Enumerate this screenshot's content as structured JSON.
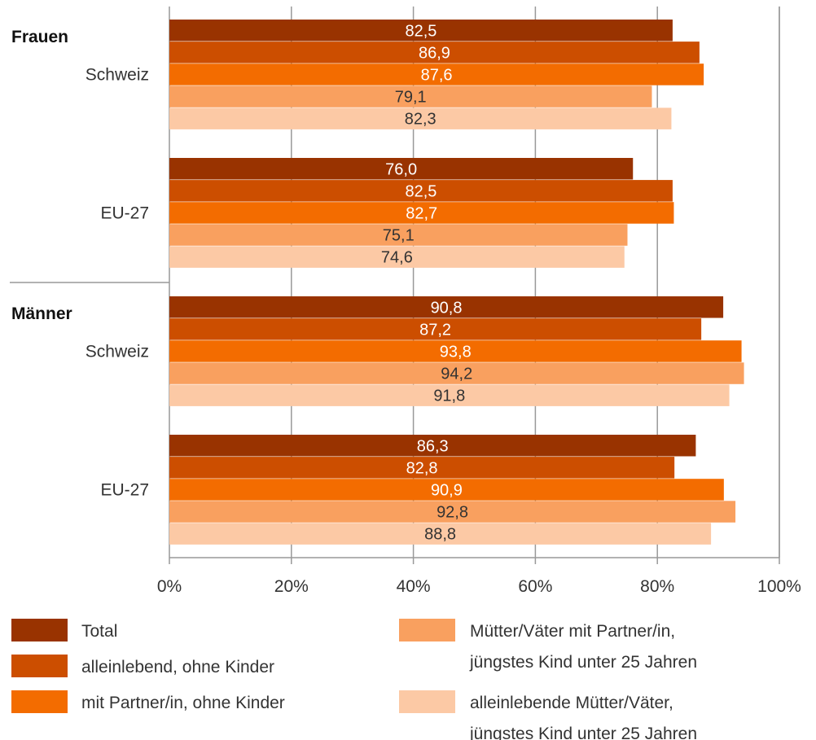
{
  "chart_data": {
    "type": "bar",
    "orientation": "horizontal",
    "title": "",
    "xlabel": "",
    "ylabel": "",
    "xlim": [
      0,
      100
    ],
    "x_ticks": [
      "0%",
      "20%",
      "40%",
      "60%",
      "80%",
      "100%"
    ],
    "grid": true,
    "legend_position": "bottom",
    "groups": [
      {
        "label": "Frauen",
        "subgroups": [
          {
            "label": "Schweiz",
            "values": [
              82.5,
              86.9,
              87.6,
              79.1,
              82.3
            ],
            "value_labels": [
              "82,5",
              "86,9",
              "87,6",
              "79,1",
              "82,3"
            ]
          },
          {
            "label": "EU-27",
            "values": [
              76.0,
              82.5,
              82.7,
              75.1,
              74.6
            ],
            "value_labels": [
              "76,0",
              "82,5",
              "82,7",
              "75,1",
              "74,6"
            ]
          }
        ]
      },
      {
        "label": "Männer",
        "subgroups": [
          {
            "label": "Schweiz",
            "values": [
              90.8,
              87.2,
              93.8,
              94.2,
              91.8
            ],
            "value_labels": [
              "90,8",
              "87,2",
              "93,8",
              "94,2",
              "91,8"
            ]
          },
          {
            "label": "EU-27",
            "values": [
              86.3,
              82.8,
              90.9,
              92.8,
              88.8
            ],
            "value_labels": [
              "86,3",
              "82,8",
              "90,9",
              "92,8",
              "88,8"
            ]
          }
        ]
      }
    ],
    "series": [
      {
        "name": "Total",
        "color": "#993300",
        "label_color": "#ffffff",
        "legend_lines": [
          "Total"
        ]
      },
      {
        "name": "alleinlebend, ohne Kinder",
        "color": "#cc4e00",
        "label_color": "#ffffff",
        "legend_lines": [
          "alleinlebend, ohne Kinder"
        ]
      },
      {
        "name": "mit Partner/in, ohne Kinder",
        "color": "#f36c00",
        "label_color": "#ffffff",
        "legend_lines": [
          "mit Partner/in, ohne Kinder"
        ]
      },
      {
        "name": "Mütter/Väter mit Partner/in, jüngstes Kind unter 25 Jahren",
        "color": "#f9a05f",
        "label_color": "#333333",
        "legend_lines": [
          "Mütter/Väter mit Partner/in,",
          "jüngstes Kind unter 25 Jahren"
        ]
      },
      {
        "name": "alleinlebende Mütter/Väter, jüngstes Kind unter 25 Jahren",
        "color": "#fcc9a5",
        "label_color": "#333333",
        "legend_lines": [
          "alleinlebende Mütter/Väter,",
          "jüngstes Kind unter 25 Jahren"
        ]
      }
    ],
    "colors": {
      "grid": "#999999",
      "axis": "#999999"
    }
  }
}
